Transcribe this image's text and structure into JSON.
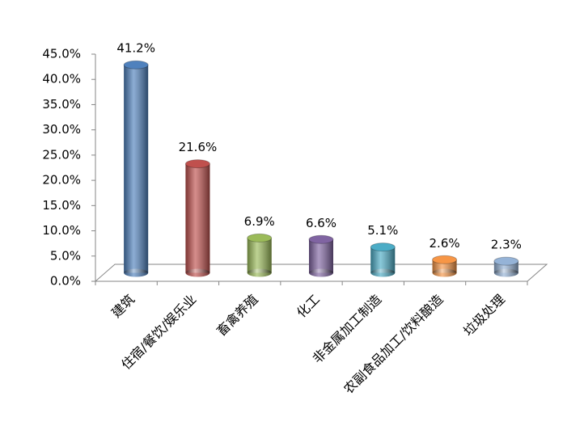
{
  "chart_data": {
    "type": "bar3d",
    "categories": [
      "建筑",
      "住宿/餐饮/娱乐业",
      "畜禽养殖",
      "化工",
      "非金属加工制造",
      "农副食品加工/饮料酿造",
      "垃圾处理"
    ],
    "values": [
      41.2,
      21.6,
      6.9,
      6.6,
      5.1,
      2.6,
      2.3
    ],
    "value_labels": [
      "41.2%",
      "21.6%",
      "6.9%",
      "6.6%",
      "5.1%",
      "2.6%",
      "2.3%"
    ],
    "colors": [
      "#4f81bd",
      "#c0504d",
      "#9bbb59",
      "#8064a2",
      "#4bacc6",
      "#f79646",
      "#95b3d7"
    ],
    "ylim": [
      0,
      45
    ],
    "yticks": [
      {
        "value": 0,
        "label": "0.0%"
      },
      {
        "value": 5,
        "label": "5.0%"
      },
      {
        "value": 10,
        "label": "10.0%"
      },
      {
        "value": 15,
        "label": "15.0%"
      },
      {
        "value": 20,
        "label": "20.0%"
      },
      {
        "value": 25,
        "label": "25.0%"
      },
      {
        "value": 30,
        "label": "30.0%"
      },
      {
        "value": 35,
        "label": "35.0%"
      },
      {
        "value": 40,
        "label": "40.0%"
      },
      {
        "value": 45,
        "label": "45.0%"
      }
    ],
    "grid": false
  }
}
